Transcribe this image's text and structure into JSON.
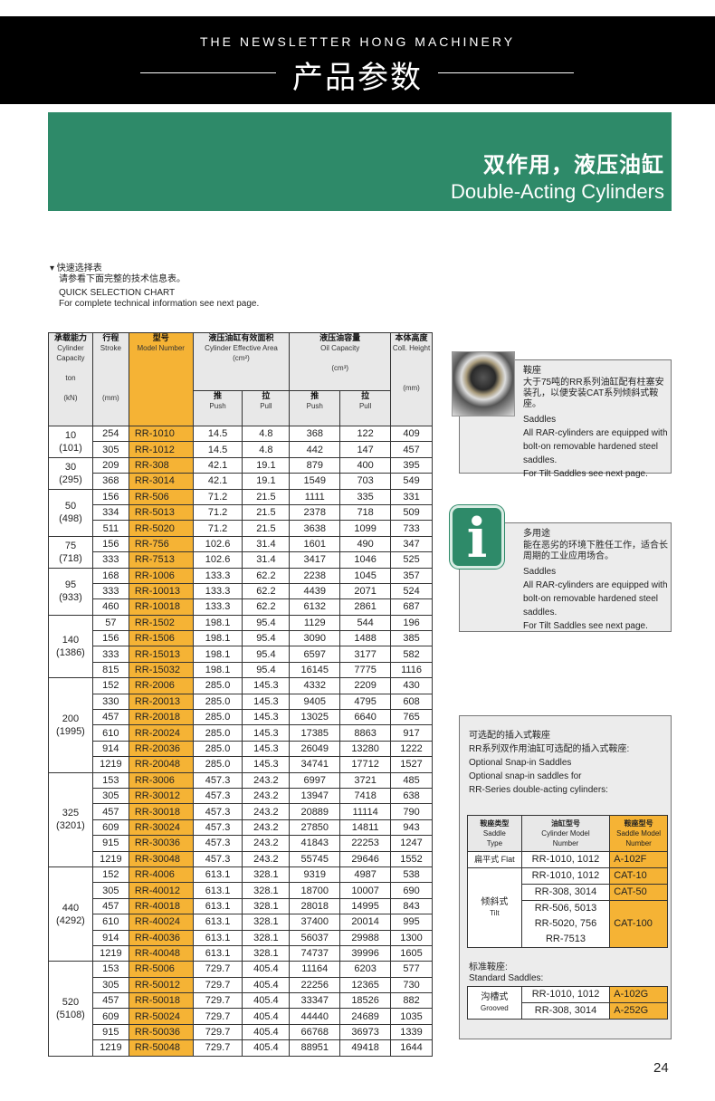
{
  "header": {
    "newsletter": "THE NEWSLETTER HONG MACHINERY",
    "title_cn": "产品参数"
  },
  "banner": {
    "title_cn": "双作用，液压油缸",
    "title_en": "Double-Acting Cylinders"
  },
  "intro": {
    "cn1": "▾ 快速选择表",
    "cn2": "请参看下面完整的技术信息表。",
    "en1": "QUICK SELECTION CHART",
    "en2": "For complete technical information see next page."
  },
  "table_header": {
    "capacity_cn": "承载能力",
    "capacity_en": "Cylinder Capacity",
    "capacity_ton": "ton",
    "capacity_kn": "(kN)",
    "stroke_cn": "行程",
    "stroke_en": "Stroke",
    "stroke_unit": "(mm)",
    "model_cn": "型号",
    "model_en": "Model Number",
    "area_cn": "液压油缸有效面积",
    "area_en": "Cylinder Effective Area",
    "area_unit": "(cm²)",
    "oil_cn": "液压油容量",
    "oil_en": "Oil Capacity",
    "oil_unit": "(cm³)",
    "push_cn": "推",
    "push_en": "Push",
    "pull_cn": "拉",
    "pull_en": "Pull",
    "height_cn": "本体高度",
    "height_en": "Coll. Height",
    "height_unit": "(mm)"
  },
  "groups": [
    {
      "ton": "10",
      "kn": "(101)",
      "rows": [
        [
          "254",
          "RR-1010",
          "14.5",
          "4.8",
          "368",
          "122",
          "409"
        ],
        [
          "305",
          "RR-1012",
          "14.5",
          "4.8",
          "442",
          "147",
          "457"
        ]
      ]
    },
    {
      "ton": "30",
      "kn": "(295)",
      "rows": [
        [
          "209",
          "RR-308",
          "42.1",
          "19.1",
          "879",
          "400",
          "395"
        ],
        [
          "368",
          "RR-3014",
          "42.1",
          "19.1",
          "1549",
          "703",
          "549"
        ]
      ]
    },
    {
      "ton": "50",
      "kn": "(498)",
      "rows": [
        [
          "156",
          "RR-506",
          "71.2",
          "21.5",
          "1111",
          "335",
          "331"
        ],
        [
          "334",
          "RR-5013",
          "71.2",
          "21.5",
          "2378",
          "718",
          "509"
        ],
        [
          "511",
          "RR-5020",
          "71.2",
          "21.5",
          "3638",
          "1099",
          "733"
        ]
      ]
    },
    {
      "ton": "75",
      "kn": "(718)",
      "rows": [
        [
          "156",
          "RR-756",
          "102.6",
          "31.4",
          "1601",
          "490",
          "347"
        ],
        [
          "333",
          "RR-7513",
          "102.6",
          "31.4",
          "3417",
          "1046",
          "525"
        ]
      ]
    },
    {
      "ton": "95",
      "kn": "(933)",
      "rows": [
        [
          "168",
          "RR-1006",
          "133.3",
          "62.2",
          "2238",
          "1045",
          "357"
        ],
        [
          "333",
          "RR-10013",
          "133.3",
          "62.2",
          "4439",
          "2071",
          "524"
        ],
        [
          "460",
          "RR-10018",
          "133.3",
          "62.2",
          "6132",
          "2861",
          "687"
        ]
      ]
    },
    {
      "ton": "140",
      "kn": "(1386)",
      "rows": [
        [
          "57",
          "RR-1502",
          "198.1",
          "95.4",
          "1129",
          "544",
          "196"
        ],
        [
          "156",
          "RR-1506",
          "198.1",
          "95.4",
          "3090",
          "1488",
          "385"
        ],
        [
          "333",
          "RR-15013",
          "198.1",
          "95.4",
          "6597",
          "3177",
          "582"
        ],
        [
          "815",
          "RR-15032",
          "198.1",
          "95.4",
          "16145",
          "7775",
          "1116"
        ]
      ]
    },
    {
      "ton": "200",
      "kn": "(1995)",
      "rows": [
        [
          "152",
          "RR-2006",
          "285.0",
          "145.3",
          "4332",
          "2209",
          "430"
        ],
        [
          "330",
          "RR-20013",
          "285.0",
          "145.3",
          "9405",
          "4795",
          "608"
        ],
        [
          "457",
          "RR-20018",
          "285.0",
          "145.3",
          "13025",
          "6640",
          "765"
        ],
        [
          "610",
          "RR-20024",
          "285.0",
          "145.3",
          "17385",
          "8863",
          "917"
        ],
        [
          "914",
          "RR-20036",
          "285.0",
          "145.3",
          "26049",
          "13280",
          "1222"
        ],
        [
          "1219",
          "RR-20048",
          "285.0",
          "145.3",
          "34741",
          "17712",
          "1527"
        ]
      ]
    },
    {
      "ton": "325",
      "kn": "(3201)",
      "rows": [
        [
          "153",
          "RR-3006",
          "457.3",
          "243.2",
          "6997",
          "3721",
          "485"
        ],
        [
          "305",
          "RR-30012",
          "457.3",
          "243.2",
          "13947",
          "7418",
          "638"
        ],
        [
          "457",
          "RR-30018",
          "457.3",
          "243.2",
          "20889",
          "11114",
          "790"
        ],
        [
          "609",
          "RR-30024",
          "457.3",
          "243.2",
          "27850",
          "14811",
          "943"
        ],
        [
          "915",
          "RR-30036",
          "457.3",
          "243.2",
          "41843",
          "22253",
          "1247"
        ],
        [
          "1219",
          "RR-30048",
          "457.3",
          "243.2",
          "55745",
          "29646",
          "1552"
        ]
      ]
    },
    {
      "ton": "440",
      "kn": "(4292)",
      "rows": [
        [
          "152",
          "RR-4006",
          "613.1",
          "328.1",
          "9319",
          "4987",
          "538"
        ],
        [
          "305",
          "RR-40012",
          "613.1",
          "328.1",
          "18700",
          "10007",
          "690"
        ],
        [
          "457",
          "RR-40018",
          "613.1",
          "328.1",
          "28018",
          "14995",
          "843"
        ],
        [
          "610",
          "RR-40024",
          "613.1",
          "328.1",
          "37400",
          "20014",
          "995"
        ],
        [
          "914",
          "RR-40036",
          "613.1",
          "328.1",
          "56037",
          "29988",
          "1300"
        ],
        [
          "1219",
          "RR-40048",
          "613.1",
          "328.1",
          "74737",
          "39996",
          "1605"
        ]
      ]
    },
    {
      "ton": "520",
      "kn": "(5108)",
      "rows": [
        [
          "153",
          "RR-5006",
          "729.7",
          "405.4",
          "11164",
          "6203",
          "577"
        ],
        [
          "305",
          "RR-50012",
          "729.7",
          "405.4",
          "22256",
          "12365",
          "730"
        ],
        [
          "457",
          "RR-50018",
          "729.7",
          "405.4",
          "33347",
          "18526",
          "882"
        ],
        [
          "609",
          "RR-50024",
          "729.7",
          "405.4",
          "44440",
          "24689",
          "1035"
        ],
        [
          "915",
          "RR-50036",
          "729.7",
          "405.4",
          "66768",
          "36973",
          "1339"
        ],
        [
          "1219",
          "RR-50048",
          "729.7",
          "405.4",
          "88951",
          "49418",
          "1644"
        ]
      ]
    }
  ],
  "panel_saddles": {
    "cn_title": "鞍座",
    "cn_text": "大于75吨的RR系列油缸配有柱塞安装孔，以便安装CAT系列倾斜式鞍座。",
    "en_title": "Saddles",
    "en_text": "All RAR-cylinders are equipped with bolt-on removable hardened steel saddles.",
    "en_note": "For Tilt Saddles see next page."
  },
  "panel_multi": {
    "icon": "info-icon",
    "icon_glyph": "i",
    "cn_title": "多用途",
    "cn_text": "能在恶劣的环境下胜任工作，适合长周期的工业应用场合。",
    "en_title": "Saddles",
    "en_text": "All RAR-cylinders are equipped with bolt-on removable hardened steel saddles.",
    "en_note": "For Tilt Saddles see next page."
  },
  "panel_optional": {
    "cn_title": "可选配的插入式鞍座",
    "cn_text": "RR系列双作用油缸可选配的插入式鞍座:",
    "en_title": "Optional Snap-in Saddles",
    "en_text1": "Optional snap-in saddles for",
    "en_text2": "RR-Series double-acting cylinders:",
    "head": {
      "type_cn": "鞍座类型",
      "type_en1": "Saddle",
      "type_en2": "Type",
      "cyl_cn": "油缸型号",
      "cyl_en1": "Cylinder Model",
      "cyl_en2": "Number",
      "sad_cn": "鞍座型号",
      "sad_en1": "Saddle Model",
      "sad_en2": "Number"
    },
    "flat": {
      "type": "扁平式 Flat",
      "cyl": "RR-1010, 1012",
      "saddle": "A-102F"
    },
    "tilt": {
      "type_cn": "倾斜式",
      "type_en": "Tilt",
      "r1_cyl": "RR-1010, 1012",
      "r1_sad": "CAT-10",
      "r2_cyl": "RR-308, 3014",
      "r2_sad": "CAT-50",
      "r3_cyl1": "RR-506, 5013",
      "r3_cyl2": "RR-5020, 756",
      "r3_cyl3": "RR-7513",
      "r3_sad": "CAT-100"
    },
    "standard_cn": "标准鞍座:",
    "standard_en": "Standard Saddles:",
    "grooved": {
      "type_cn": "沟槽式",
      "type_en": "Grooved",
      "r1_cyl": "RR-1010, 1012",
      "r1_sad": "A-102G",
      "r2_cyl": "RR-308, 3014",
      "r2_sad": "A-252G"
    }
  },
  "page_number": "24",
  "colors": {
    "green": "#2e8a69",
    "orange": "#f5b335",
    "black": "#000000"
  }
}
